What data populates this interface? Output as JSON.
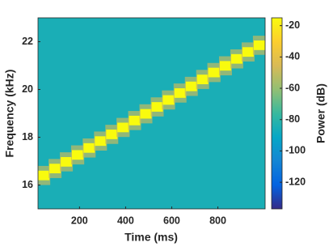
{
  "chart_data": {
    "type": "spectrogram",
    "x_label": "Time (ms)",
    "y_label": "Frequency (kHz)",
    "colorbar_label": "Power (dB)",
    "x": [
      45,
      94,
      143,
      192,
      242,
      291,
      340,
      389,
      439,
      488,
      537,
      586,
      636,
      685,
      734,
      783,
      833,
      882,
      931,
      980
    ],
    "y": [
      16.4,
      16.69,
      16.97,
      17.26,
      17.55,
      17.84,
      18.12,
      18.41,
      18.7,
      18.98,
      19.27,
      19.56,
      19.85,
      20.13,
      20.42,
      20.71,
      20.99,
      21.28,
      21.57,
      21.85
    ],
    "z": [
      -15,
      -15,
      -15,
      -15,
      -15,
      -15,
      -15,
      -15,
      -15,
      -15,
      -15,
      -15,
      -15,
      -15,
      -15,
      -15,
      -15,
      -15,
      -15,
      -15
    ],
    "noise_floor": -85,
    "xlim": [
      20,
      1005
    ],
    "xticks": [
      200,
      400,
      600,
      800
    ],
    "ylim": [
      15,
      23
    ],
    "yticks": [
      16,
      18,
      20,
      22
    ],
    "clim": [
      -137,
      -15
    ],
    "cticks": [
      -120,
      -100,
      -80,
      -60,
      -40,
      -20
    ],
    "colormap": "parula"
  }
}
